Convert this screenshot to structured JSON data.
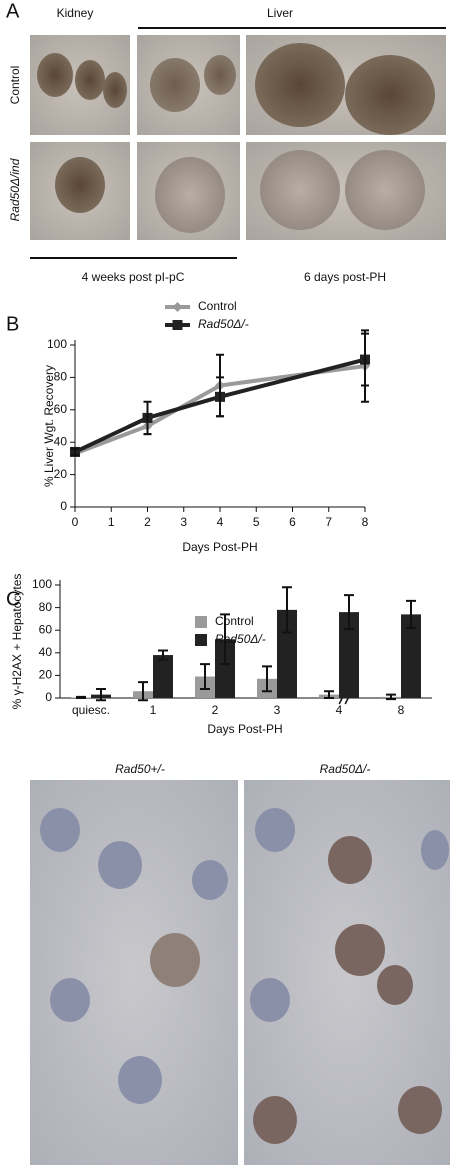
{
  "panel_a": {
    "label": "A",
    "kidney": "Kidney",
    "liver": "Liver",
    "row_control": "Control",
    "row_mutant": "Rad50Δ/ind",
    "left_caption": "4 weeks post pI-pC",
    "right_caption": "6 days post-PH"
  },
  "chart_data": [
    {
      "type": "line",
      "panel": "B",
      "x_label": "Days Post-PH",
      "y_label": "% Liver Wgt. Recovery",
      "x": [
        0,
        2,
        4,
        8
      ],
      "xlim": [
        0,
        8
      ],
      "xticks": [
        0,
        1,
        2,
        3,
        4,
        5,
        6,
        7,
        8
      ],
      "ylim": [
        0,
        100
      ],
      "yticks": [
        0,
        20,
        40,
        60,
        80,
        100
      ],
      "series": [
        {
          "name": "Control",
          "color": "#9a9a9a",
          "marker": "diamond",
          "values": [
            33,
            50,
            75,
            87
          ],
          "errors": [
            1,
            5,
            19,
            22
          ]
        },
        {
          "name": "Rad50Δ/-",
          "color": "#222222",
          "marker": "square",
          "values": [
            34,
            55,
            68,
            91
          ],
          "errors": [
            2,
            10,
            12,
            16
          ]
        }
      ]
    },
    {
      "type": "bar",
      "panel": "C",
      "x_label": "Days Post-PH",
      "y_label": "% γ-H2AX + Hepatocytes",
      "categories": [
        "quiesc.",
        "1",
        "2",
        "3",
        "4",
        "8"
      ],
      "ylim": [
        0,
        100
      ],
      "yticks": [
        0,
        20,
        40,
        60,
        80,
        100
      ],
      "series": [
        {
          "name": "Control",
          "color": "#9a9a9a",
          "values": [
            0.5,
            6,
            19,
            17,
            3,
            1
          ],
          "errors": [
            0.5,
            8,
            11,
            11,
            3,
            2
          ]
        },
        {
          "name": "Rad50Δ/-",
          "color": "#222222",
          "values": [
            3,
            38,
            52,
            78,
            76,
            74
          ],
          "errors": [
            5,
            4,
            22,
            20,
            15,
            12
          ]
        }
      ]
    }
  ],
  "panel_d": {
    "left": "Rad50+/-",
    "right": "Rad50Δ/-"
  }
}
